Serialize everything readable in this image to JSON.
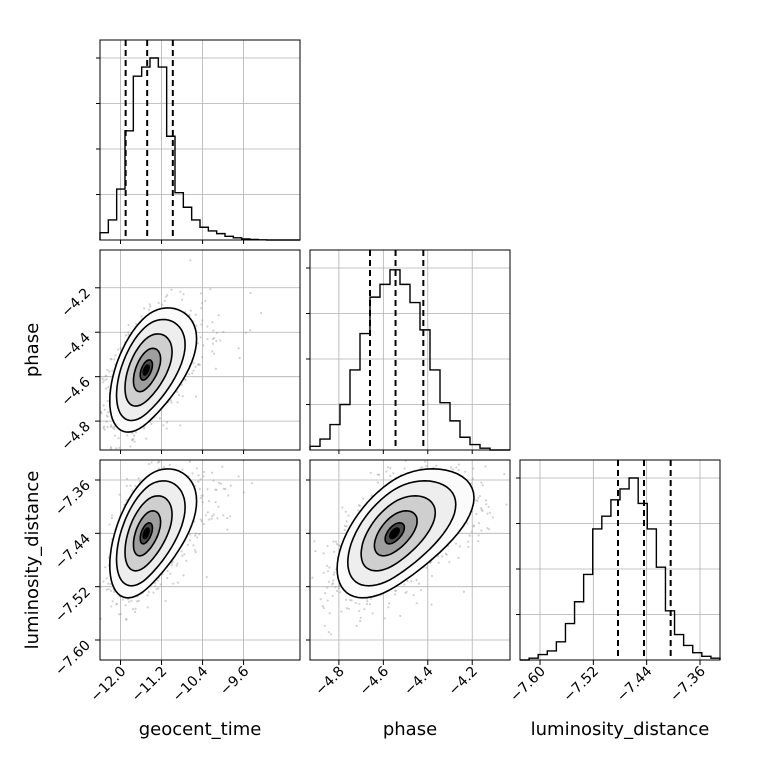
{
  "chart_data": {
    "type": "corner",
    "parameters": [
      {
        "name": "geocent_time",
        "range": [
          -12.4,
          -8.5
        ],
        "ticks": [
          -12.0,
          -11.2,
          -10.4,
          -9.6
        ],
        "tick_labels": [
          "−12.0",
          "−11.2",
          "−10.4",
          "−9.6"
        ],
        "quantiles": [
          -11.9,
          -11.48,
          -10.98
        ],
        "hist_counts": [
          0.04,
          0.11,
          0.28,
          0.6,
          0.9,
          0.95,
          1.0,
          0.95,
          0.57,
          0.26,
          0.18,
          0.11,
          0.07,
          0.05,
          0.035,
          0.02,
          0.012,
          0.006,
          0.003,
          0.001,
          0,
          0,
          0,
          0
        ]
      },
      {
        "name": "phase",
        "range": [
          -4.93,
          -4.03
        ],
        "ticks": [
          -4.8,
          -4.6,
          -4.4,
          -4.2
        ],
        "tick_labels": [
          "−4.8",
          "−4.6",
          "−4.4",
          "−4.2"
        ],
        "quantiles": [
          -4.66,
          -4.545,
          -4.42
        ],
        "hist_counts": [
          0.02,
          0.06,
          0.14,
          0.25,
          0.44,
          0.64,
          0.84,
          0.91,
          0.99,
          0.91,
          0.81,
          0.66,
          0.44,
          0.26,
          0.16,
          0.07,
          0.03,
          0.01,
          0.0,
          0.0
        ]
      },
      {
        "name": "luminosity_distance",
        "range": [
          -7.63,
          -7.33
        ],
        "ticks": [
          -7.6,
          -7.52,
          -7.44,
          -7.36
        ],
        "tick_labels": [
          "−7.60",
          "−7.52",
          "−7.44",
          "−7.36"
        ],
        "quantiles": [
          -7.483,
          -7.444,
          -7.404
        ],
        "hist_counts": [
          0.0,
          0.01,
          0.03,
          0.05,
          0.1,
          0.2,
          0.32,
          0.47,
          0.72,
          0.79,
          0.88,
          0.94,
          1.0,
          0.86,
          0.72,
          0.51,
          0.27,
          0.14,
          0.08,
          0.04,
          0.02,
          0.01
        ]
      }
    ],
    "pairs": [
      {
        "x": "geocent_time",
        "y": "phase",
        "center": [
          -11.5,
          -4.57
        ],
        "spread": [
          0.33,
          0.13
        ],
        "correlation": 0.5,
        "contour_scales": [
          0.35,
          0.75,
          1.25,
          1.75,
          2.15
        ]
      },
      {
        "x": "geocent_time",
        "y": "luminosity_distance",
        "center": [
          -11.5,
          -7.44
        ],
        "spread": [
          0.33,
          0.045
        ],
        "correlation": 0.5,
        "contour_scales": [
          0.35,
          0.75,
          1.25,
          1.75,
          2.15
        ]
      },
      {
        "x": "phase",
        "y": "luminosity_distance",
        "center": [
          -4.55,
          -7.44
        ],
        "spread": [
          0.12,
          0.045
        ],
        "correlation": 0.55,
        "contour_scales": [
          0.35,
          0.75,
          1.25,
          1.75,
          2.15
        ]
      }
    ],
    "grid": true,
    "colors": {
      "line": "#000000",
      "grid": "#b0b0b0",
      "scatter": "#9a9a9a"
    }
  }
}
